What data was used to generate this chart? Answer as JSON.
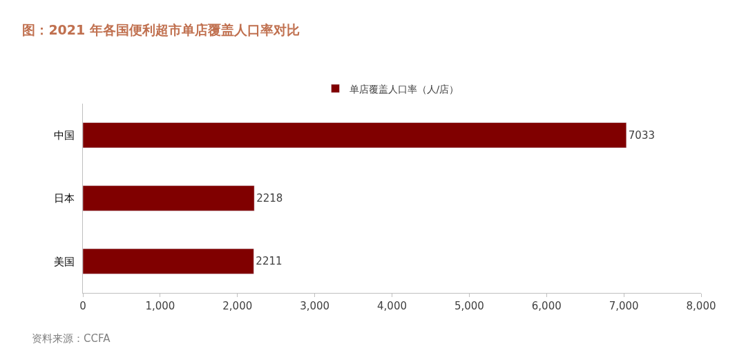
{
  "chart_data": {
    "type": "bar",
    "orientation": "horizontal",
    "title": "图：2021 年各国便利超市单店覆盖人口率对比",
    "categories": [
      "中国",
      "日本",
      "美国"
    ],
    "series": [
      {
        "name": "单店覆盖人口率（人/店）",
        "color": "#800000",
        "values": [
          7033,
          2218,
          2211
        ]
      }
    ],
    "xlim": [
      0,
      8000
    ],
    "xticks": [
      0,
      {
        "value": 1000,
        "label": "1,000"
      },
      {
        "value": 2000,
        "label": "2,000"
      },
      {
        "value": 3000,
        "label": "3,000"
      },
      {
        "value": 4000,
        "label": "4,000"
      },
      {
        "value": 5000,
        "label": "5,000"
      },
      {
        "value": 6000,
        "label": "6,000"
      },
      {
        "value": 7000,
        "label": "7,000"
      },
      {
        "value": 8000,
        "label": "8,000"
      }
    ],
    "data_labels": true,
    "legend": "top",
    "annotations": [
      "资料来源：CCFA"
    ]
  }
}
